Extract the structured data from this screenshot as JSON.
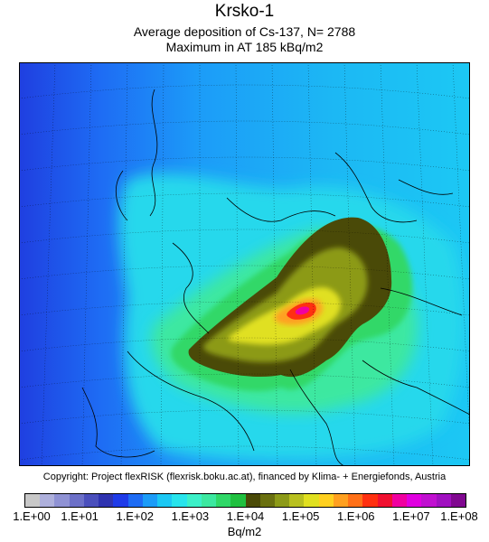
{
  "header": {
    "title": "Krsko-1",
    "subtitle": "Average deposition of Cs-137, N= 2788",
    "maximum": "Maximum in AT    185 kBq/m2"
  },
  "footer": {
    "copyright": "Copyright: Project flexRISK (flexrisk.boku.ac.at), financed by Klima- + Energiefonds, Austria"
  },
  "legend": {
    "ticks": [
      "1.E+00",
      "1.E+01",
      "1.E+02",
      "1.E+03",
      "1.E+04",
      "1.E+05",
      "1.E+06",
      "1.E+07",
      "1.E+08"
    ],
    "unit": "Bq/m2",
    "colors": [
      "#c8c8c8",
      "#aeb0dc",
      "#8f92d4",
      "#6c70c8",
      "#4a4fbc",
      "#2f33b0",
      "#1f3be8",
      "#1e6cf4",
      "#1c9cf8",
      "#1cc8f4",
      "#28e4ec",
      "#3cf0c8",
      "#3ce8a0",
      "#30d868",
      "#20c040",
      "#4a4a08",
      "#6a7010",
      "#8c9a18",
      "#b8c020",
      "#e0e020",
      "#ffd020",
      "#ffa020",
      "#ff7018",
      "#ff3010",
      "#f01030",
      "#f000a0",
      "#e000e0",
      "#c010d0",
      "#a010c0",
      "#800890"
    ]
  },
  "map": {
    "source_marker": "Krsko",
    "colors": {
      "ocean_far": "#1f3fe0",
      "ocean": "#1e78f6",
      "mid": "#1cc0f2",
      "green": "#30d878",
      "olive": "#4a4a08",
      "yellow": "#e0e020",
      "red": "#ff3010",
      "magenta": "#f000a0"
    }
  }
}
